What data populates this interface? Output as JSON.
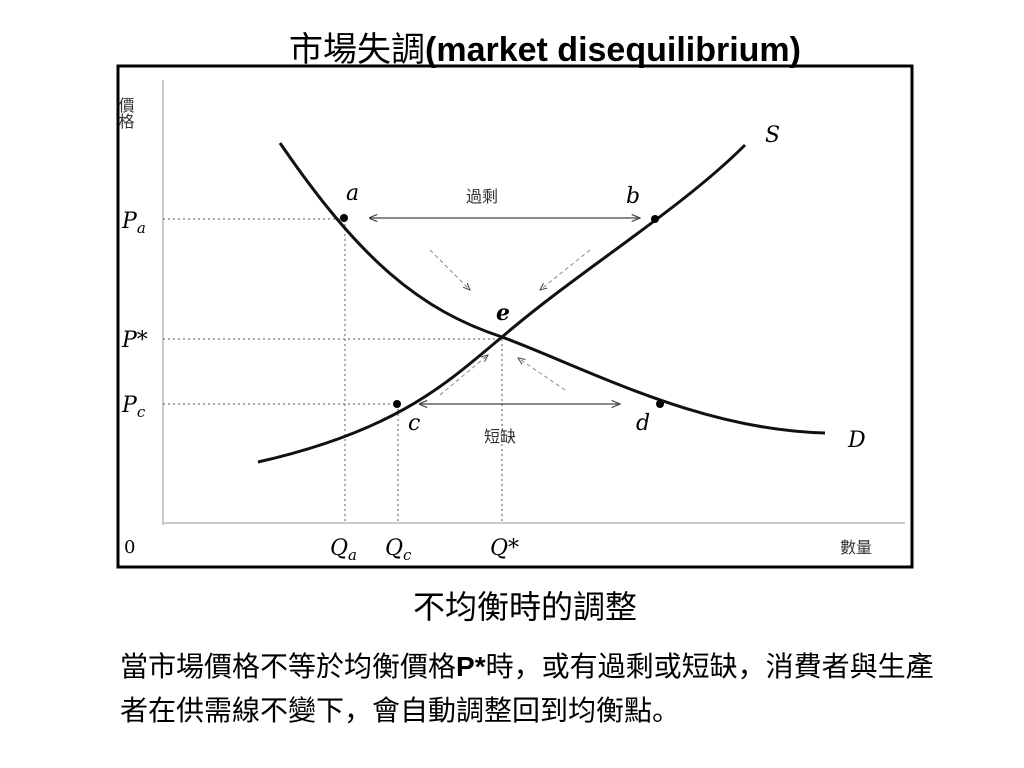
{
  "title": {
    "parts": [
      "市場失調",
      "(market disequilibrium)"
    ]
  },
  "diagram": {
    "y_axis_label": "價格",
    "x_axis_label": "數量",
    "origin": "0",
    "price_labels": [
      {
        "main": "P",
        "sub": "a"
      },
      {
        "main": "P*"
      },
      {
        "main": "P",
        "sub": "c"
      }
    ],
    "quantity_labels": [
      {
        "main": "Q",
        "sub": "a"
      },
      {
        "main": "Q",
        "sub": "c"
      },
      {
        "main": "Q*"
      }
    ],
    "points": [
      "a",
      "b",
      "c",
      "d",
      "e"
    ],
    "curves": [
      "S",
      "D"
    ],
    "surplus_label": "過剩",
    "shortage_label": "短缺"
  },
  "caption": "不均衡時的調整",
  "body": {
    "parts": [
      "當市場價格不等於均衡價格",
      "P*",
      "時，或有過剩或短缺，消費者與生產者在供需線不變下，會自動調整回到均衡點。"
    ]
  }
}
